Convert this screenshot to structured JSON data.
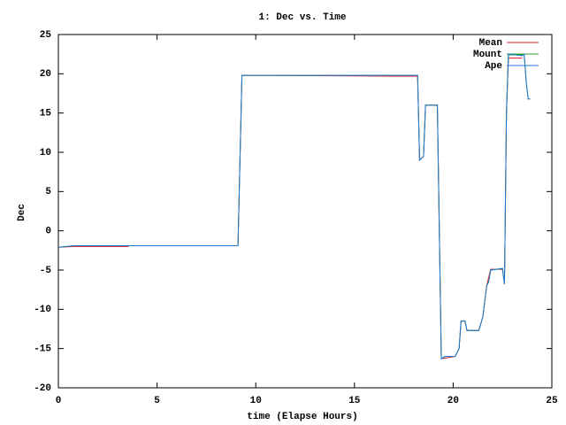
{
  "chart_data": {
    "type": "line",
    "title": "1: Dec vs. Time",
    "x_label": "time (Elapse Hours)",
    "y_label": "Dec",
    "xlim": [
      0,
      25
    ],
    "xticks": [
      0,
      5,
      10,
      15,
      20,
      25
    ],
    "ylim": [
      -20,
      25
    ],
    "yticks": [
      -20,
      -15,
      -10,
      -5,
      0,
      5,
      10,
      15,
      20,
      25
    ],
    "legend": "top-right",
    "series": [
      {
        "name": "Mean",
        "color": "#e41a1c",
        "x": [
          0,
          0.8,
          3.5,
          3.6,
          9.1,
          9.3,
          16.8,
          18.2,
          18.3,
          18.5,
          18.6,
          19.2,
          19.4,
          20.1,
          20.3,
          20.4,
          20.6,
          20.7,
          21.3,
          21.5,
          21.7,
          21.9,
          22.5,
          22.6,
          22.7,
          22.8,
          23.5
        ],
        "values": [
          -2.1,
          -2.0,
          -2.0,
          -1.9,
          -1.9,
          19.8,
          19.7,
          19.7,
          9,
          9.5,
          16,
          16,
          -16.3,
          -16,
          -15,
          -11.5,
          -11.5,
          -12.7,
          -12.7,
          -11,
          -7,
          -4.9,
          -4.9,
          -6.8,
          15,
          22.0,
          22.0
        ]
      },
      {
        "name": "Mount",
        "color": "#2ca02c",
        "x": [
          0,
          0.8,
          9.1,
          9.3,
          18.2,
          18.3,
          18.5,
          18.6,
          19.2,
          19.4,
          19.6,
          20.1,
          20.3,
          20.4,
          20.6,
          20.7,
          21.3,
          21.5,
          21.7,
          21.8,
          21.9,
          22.5,
          22.6,
          22.7,
          22.8,
          23.5,
          23.6,
          23.7,
          23.8,
          23.9
        ],
        "values": [
          -2.1,
          -1.9,
          -1.9,
          19.8,
          19.8,
          9,
          9.5,
          16,
          16,
          -16.3,
          -16,
          -16,
          -15,
          -11.5,
          -11.5,
          -12.7,
          -12.7,
          -11,
          -7,
          -6.5,
          -5,
          -4.8,
          -6.8,
          15,
          22.4,
          22.4,
          22.4,
          19,
          16.8,
          16.8
        ]
      },
      {
        "name": "Ape",
        "color": "#1f77d4",
        "x": [
          0,
          0.8,
          9.1,
          9.3,
          18.2,
          18.3,
          18.5,
          18.6,
          19.2,
          19.4,
          19.6,
          20.1,
          20.3,
          20.4,
          20.6,
          20.7,
          21.3,
          21.5,
          21.7,
          21.8,
          21.9,
          22.5,
          22.6,
          22.7,
          22.8,
          23.5,
          23.6,
          23.7,
          23.8,
          23.9
        ],
        "values": [
          -2.1,
          -1.9,
          -1.9,
          19.8,
          19.8,
          9,
          9.5,
          16,
          16,
          -16.3,
          -16,
          -16,
          -15,
          -11.5,
          -11.5,
          -12.7,
          -12.7,
          -11,
          -7,
          -6.5,
          -5,
          -4.8,
          -6.8,
          15,
          22.5,
          22.3,
          22.5,
          19,
          16.8,
          16.8
        ]
      }
    ]
  }
}
